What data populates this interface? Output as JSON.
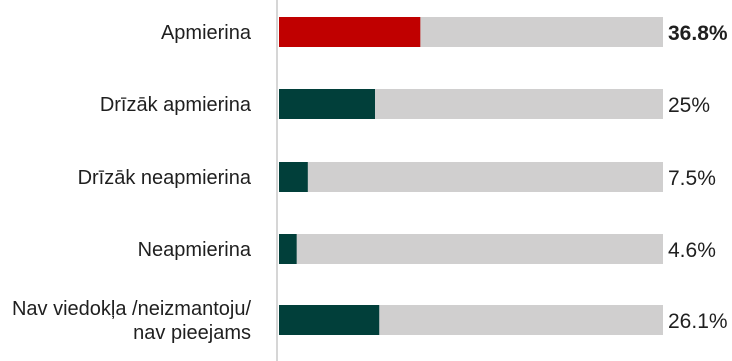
{
  "chart_data": {
    "type": "bar",
    "orientation": "horizontal",
    "categories": [
      [
        "Apmierina"
      ],
      [
        "Drīzāk apmierina"
      ],
      [
        "Drīzāk neapmierina"
      ],
      [
        "Neapmierina"
      ],
      [
        "Nav viedokļa /neizmantoju/",
        "nav pieejams"
      ]
    ],
    "values": [
      36.8,
      25,
      7.5,
      4.6,
      26.1
    ],
    "value_labels": [
      "36.8%",
      "25%",
      "7.5%",
      "4.6%",
      "26.1%"
    ],
    "xlim": [
      0,
      100
    ],
    "highlight_index": 0,
    "title": "",
    "xlabel": "",
    "ylabel": "",
    "grid": false,
    "legend": "none",
    "colors": {
      "highlight_bar": "#c00000",
      "bar": "#013f3a",
      "track": "#d0cfcf",
      "highlight_text": "#c00000",
      "text": "#1f1f1f",
      "axis": "#c8c8c8"
    }
  }
}
